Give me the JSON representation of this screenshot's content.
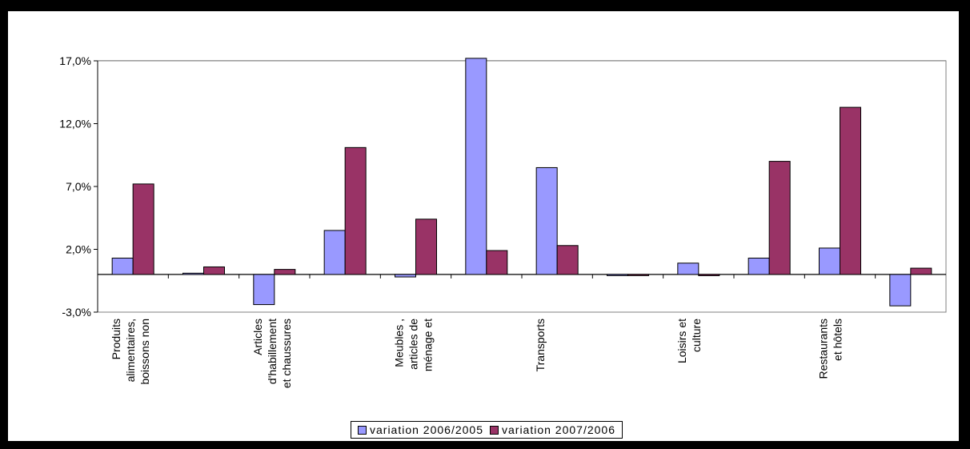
{
  "chart_data": {
    "type": "bar",
    "categories": [
      "Produits alimentaires, boissons non",
      "",
      "Articles d'habillement et chaussures",
      "",
      "Meubles , articles de ménage et",
      "",
      "Transports",
      "",
      "Loisirs et culture",
      "",
      "Restaurants et hôtels",
      ""
    ],
    "series": [
      {
        "name": "variation 2006/2005",
        "color": "#9999ff",
        "values": [
          1.3,
          0.1,
          -2.4,
          3.5,
          -0.2,
          17.2,
          8.5,
          0.0,
          0.9,
          1.3,
          2.1,
          -2.5
        ]
      },
      {
        "name": "variation 2007/2006",
        "color": "#993366",
        "values": [
          7.2,
          0.6,
          0.4,
          10.1,
          4.4,
          1.9,
          2.3,
          0.0,
          -0.1,
          9.0,
          13.3,
          0.5
        ]
      }
    ],
    "yticks": [
      "17,0%",
      "12,0%",
      "7,0%",
      "2,0%",
      "-3,0%"
    ],
    "ytick_values": [
      17,
      12,
      7,
      2,
      -3
    ],
    "ylim": [
      -3,
      17
    ],
    "grid": true,
    "legend_position": "bottom"
  }
}
